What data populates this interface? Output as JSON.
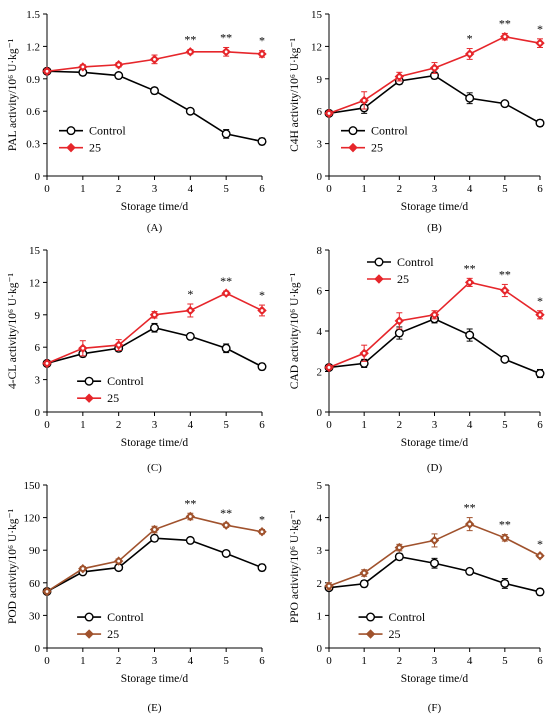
{
  "chart_data": [
    {
      "type": "line",
      "panel_label": "(A)",
      "ylabel": "PAL activity/10⁶ U·kg⁻¹",
      "xlabel": "Storage time/d",
      "x": [
        0,
        1,
        2,
        3,
        4,
        5,
        6
      ],
      "xticks": [
        "0",
        "1",
        "2",
        "3",
        "4",
        "5",
        "6"
      ],
      "ylim": [
        0,
        1.5
      ],
      "yticks": [
        "0",
        "0.3",
        "0.6",
        "0.9",
        "1.2",
        "1.5"
      ],
      "legend_position": "bottom-left",
      "grid": false,
      "series": [
        {
          "name": "Control",
          "values": [
            0.97,
            0.96,
            0.93,
            0.79,
            0.6,
            0.39,
            0.32
          ],
          "errors": [
            0.02,
            0.03,
            0.02,
            0.03,
            0.02,
            0.04,
            0.03
          ],
          "color": "#000000",
          "marker": "circle"
        },
        {
          "name": "25",
          "values": [
            0.97,
            1.01,
            1.03,
            1.08,
            1.15,
            1.15,
            1.13
          ],
          "errors": [
            0.02,
            0.02,
            0.02,
            0.04,
            0.02,
            0.04,
            0.03
          ],
          "color": "#e6262b",
          "marker": "diamond"
        }
      ],
      "significance": [
        "",
        "",
        "",
        "",
        "**",
        "**",
        "*"
      ]
    },
    {
      "type": "line",
      "panel_label": "(B)",
      "ylabel": "C4H activity/10⁶ U·kg⁻¹",
      "xlabel": "Storage time/d",
      "x": [
        0,
        1,
        2,
        3,
        4,
        5,
        6
      ],
      "xticks": [
        "0",
        "1",
        "2",
        "3",
        "4",
        "5",
        "6"
      ],
      "ylim": [
        0,
        15
      ],
      "yticks": [
        "0",
        "3",
        "6",
        "9",
        "12",
        "15"
      ],
      "legend_position": "bottom-left",
      "grid": false,
      "series": [
        {
          "name": "Control",
          "values": [
            5.8,
            6.3,
            8.8,
            9.3,
            7.2,
            6.7,
            4.9
          ],
          "errors": [
            0.2,
            0.5,
            0.3,
            0.3,
            0.5,
            0.2,
            0.3
          ],
          "color": "#000000",
          "marker": "circle"
        },
        {
          "name": "25",
          "values": [
            5.8,
            7.0,
            9.2,
            10.0,
            11.3,
            12.9,
            12.3
          ],
          "errors": [
            0.2,
            0.8,
            0.4,
            0.5,
            0.5,
            0.3,
            0.4
          ],
          "color": "#e6262b",
          "marker": "diamond"
        }
      ],
      "significance": [
        "",
        "",
        "",
        "",
        "*",
        "**",
        "*"
      ]
    },
    {
      "type": "line",
      "panel_label": "(C)",
      "ylabel": "4-CL activity/10⁶ U·kg⁻¹",
      "xlabel": "Storage time/d",
      "x": [
        0,
        1,
        2,
        3,
        4,
        5,
        6
      ],
      "xticks": [
        "0",
        "1",
        "2",
        "3",
        "4",
        "5",
        "6"
      ],
      "ylim": [
        0,
        15
      ],
      "yticks": [
        "0",
        "3",
        "6",
        "9",
        "12",
        "15"
      ],
      "legend_position": "bottom-center",
      "grid": false,
      "series": [
        {
          "name": "Control",
          "values": [
            4.5,
            5.4,
            5.9,
            7.8,
            7.0,
            5.9,
            4.2
          ],
          "errors": [
            0.2,
            0.3,
            0.3,
            0.4,
            0.2,
            0.4,
            0.3
          ],
          "color": "#000000",
          "marker": "circle"
        },
        {
          "name": "25",
          "values": [
            4.5,
            5.9,
            6.2,
            9.0,
            9.4,
            11.0,
            9.4
          ],
          "errors": [
            0.2,
            0.7,
            0.5,
            0.3,
            0.6,
            0.2,
            0.5
          ],
          "color": "#e6262b",
          "marker": "diamond"
        }
      ],
      "significance": [
        "",
        "",
        "",
        "",
        "*",
        "**",
        "*"
      ]
    },
    {
      "type": "line",
      "panel_label": "(D)",
      "ylabel": "CAD activity/10⁶ U·kg⁻¹",
      "xlabel": "Storage time/d",
      "x": [
        0,
        1,
        2,
        3,
        4,
        5,
        6
      ],
      "xticks": [
        "0",
        "1",
        "2",
        "3",
        "4",
        "5",
        "6"
      ],
      "ylim": [
        0,
        8
      ],
      "yticks": [
        "0",
        "2",
        "4",
        "6",
        "8"
      ],
      "legend_position": "top-left",
      "grid": false,
      "series": [
        {
          "name": "Control",
          "values": [
            2.2,
            2.4,
            3.9,
            4.6,
            3.8,
            2.6,
            1.9
          ],
          "errors": [
            0.1,
            0.2,
            0.3,
            0.2,
            0.3,
            0.1,
            0.2
          ],
          "color": "#000000",
          "marker": "circle"
        },
        {
          "name": "25",
          "values": [
            2.2,
            2.9,
            4.5,
            4.8,
            6.4,
            6.0,
            4.8
          ],
          "errors": [
            0.1,
            0.4,
            0.4,
            0.2,
            0.2,
            0.3,
            0.2
          ],
          "color": "#e6262b",
          "marker": "diamond"
        }
      ],
      "significance": [
        "",
        "",
        "",
        "",
        "**",
        "**",
        "*"
      ]
    },
    {
      "type": "line",
      "panel_label": "(E)",
      "ylabel": "POD activity/10⁶ U·kg⁻¹",
      "xlabel": "Storage time/d",
      "x": [
        0,
        1,
        2,
        3,
        4,
        5,
        6
      ],
      "xticks": [
        "0",
        "1",
        "2",
        "3",
        "4",
        "5",
        "6"
      ],
      "ylim": [
        0,
        150
      ],
      "yticks": [
        "0",
        "30",
        "60",
        "90",
        "120",
        "150"
      ],
      "legend_position": "bottom-center",
      "grid": false,
      "series": [
        {
          "name": "Control",
          "values": [
            52,
            70,
            74,
            101,
            99,
            87,
            74
          ],
          "errors": [
            2,
            2,
            2,
            3,
            2,
            2,
            3
          ],
          "color": "#000000",
          "marker": "circle"
        },
        {
          "name": "25",
          "values": [
            52,
            73,
            80,
            109,
            121,
            113,
            107
          ],
          "errors": [
            2,
            2,
            2,
            3,
            3,
            2,
            2
          ],
          "color": "#a0522d",
          "marker": "diamond"
        }
      ],
      "significance": [
        "",
        "",
        "",
        "",
        "**",
        "**",
        "*"
      ]
    },
    {
      "type": "line",
      "panel_label": "(F)",
      "ylabel": "PPO activity/10⁶ U·kg⁻¹",
      "xlabel": "Storage time/d",
      "x": [
        0,
        1,
        2,
        3,
        4,
        5,
        6
      ],
      "xticks": [
        "0",
        "1",
        "2",
        "3",
        "4",
        "5",
        "6"
      ],
      "ylim": [
        0,
        5
      ],
      "yticks": [
        "0",
        "1",
        "2",
        "3",
        "4",
        "5"
      ],
      "legend_position": "bottom-center",
      "grid": false,
      "series": [
        {
          "name": "Control",
          "values": [
            1.85,
            1.97,
            2.8,
            2.6,
            2.35,
            1.98,
            1.72
          ],
          "errors": [
            0.05,
            0.1,
            0.1,
            0.15,
            0.05,
            0.15,
            0.1
          ],
          "color": "#000000",
          "marker": "circle"
        },
        {
          "name": "25",
          "values": [
            1.9,
            2.3,
            3.08,
            3.3,
            3.8,
            3.38,
            2.83
          ],
          "errors": [
            0.1,
            0.1,
            0.1,
            0.2,
            0.2,
            0.1,
            0.05
          ],
          "color": "#a0522d",
          "marker": "diamond"
        }
      ],
      "significance": [
        "",
        "",
        "",
        "",
        "**",
        "**",
        "*"
      ]
    }
  ]
}
